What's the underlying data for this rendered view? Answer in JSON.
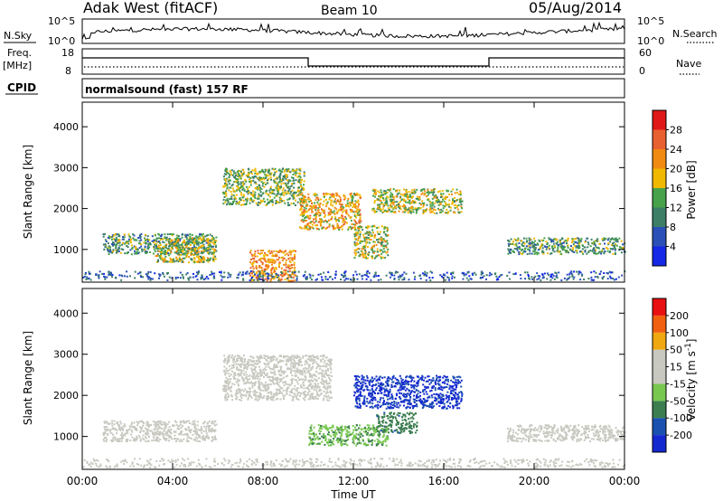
{
  "header": {
    "radar": "Adak West (fitACF)",
    "beam": "Beam 10",
    "date": "05/Aug/2014"
  },
  "panel_labels": {
    "nsky": "N.Sky",
    "nsearch": "N.Search",
    "freq": "Freq.",
    "mhz": "[MHz]",
    "nave": "Nave",
    "cpid": "CPID",
    "cpid_value": "normalsound (fast) 157 RF"
  },
  "noise_axis": {
    "left_ticks": [
      "10^5",
      "10^0"
    ],
    "right_ticks": [
      "10^5",
      "10^0"
    ]
  },
  "freq_axis": {
    "left_ticks": [
      "18",
      "8"
    ],
    "right_ticks": [
      "60",
      "0"
    ]
  },
  "colors": {
    "power_scale": [
      "#1428e6",
      "#2a50b8",
      "#3c7e66",
      "#48a24a",
      "#f0b800",
      "#f08a10",
      "#e86030",
      "#e01818"
    ],
    "velocity_scale": [
      "#e81010",
      "#f06010",
      "#f0a810",
      "#c8c8c0",
      "#c8c8c0",
      "#78c850",
      "#3c7e50",
      "#1a50b0",
      "#1428d0"
    ]
  },
  "chart_data": [
    {
      "type": "heatmap",
      "name": "power",
      "ylabel": "Slant Range [km]",
      "ylim": [
        200,
        4600
      ],
      "y_ticks": [
        1000,
        2000,
        3000,
        4000
      ],
      "colorbar": {
        "label": "Power [dB]",
        "range": [
          0,
          32
        ],
        "ticks": [
          4,
          8,
          12,
          16,
          20,
          24,
          28
        ]
      },
      "features": [
        {
          "t": [
            0.9,
            5.9
          ],
          "range": [
            900,
            1400
          ],
          "value": 12
        },
        {
          "t": [
            3.2,
            5.9
          ],
          "range": [
            700,
            1300
          ],
          "value": 16
        },
        {
          "t": [
            6.2,
            9.8
          ],
          "range": [
            2100,
            3000
          ],
          "value": 14
        },
        {
          "t": [
            9.6,
            12.3
          ],
          "range": [
            1500,
            2400
          ],
          "value": 20
        },
        {
          "t": [
            12.8,
            16.8
          ],
          "range": [
            1900,
            2500
          ],
          "value": 16
        },
        {
          "t": [
            7.4,
            9.4
          ],
          "range": [
            250,
            1000
          ],
          "value": 22
        },
        {
          "t": [
            12.0,
            13.5
          ],
          "range": [
            800,
            1600
          ],
          "value": 16
        },
        {
          "t": [
            18.8,
            24.0
          ],
          "range": [
            900,
            1300
          ],
          "value": 12
        }
      ]
    },
    {
      "type": "heatmap",
      "name": "velocity",
      "ylabel": "Slant Range [km]",
      "ylim": [
        200,
        4600
      ],
      "y_ticks": [
        1000,
        2000,
        3000,
        4000
      ],
      "colorbar": {
        "label": "Velocity [m s^-1]",
        "range": [
          -250,
          250
        ],
        "ticks": [
          200,
          100,
          50,
          15,
          -15,
          -50,
          -100,
          -200
        ]
      },
      "features": [
        {
          "t": [
            0.9,
            5.9
          ],
          "range": [
            900,
            1400
          ],
          "value": 0
        },
        {
          "t": [
            6.2,
            11.0
          ],
          "range": [
            1900,
            3000
          ],
          "value": 0
        },
        {
          "t": [
            12.0,
            16.8
          ],
          "range": [
            1700,
            2500
          ],
          "value": -200
        },
        {
          "t": [
            10.0,
            13.5
          ],
          "range": [
            800,
            1300
          ],
          "value": -75
        },
        {
          "t": [
            13.0,
            14.8
          ],
          "range": [
            1100,
            1600
          ],
          "value": -120
        },
        {
          "t": [
            18.8,
            24.0
          ],
          "range": [
            900,
            1300
          ],
          "value": 0
        }
      ]
    }
  ],
  "x_axis": {
    "label": "Time UT",
    "tick_labels": [
      "00:00",
      "04:00",
      "08:00",
      "12:00",
      "16:00",
      "20:00",
      "00:00"
    ]
  }
}
